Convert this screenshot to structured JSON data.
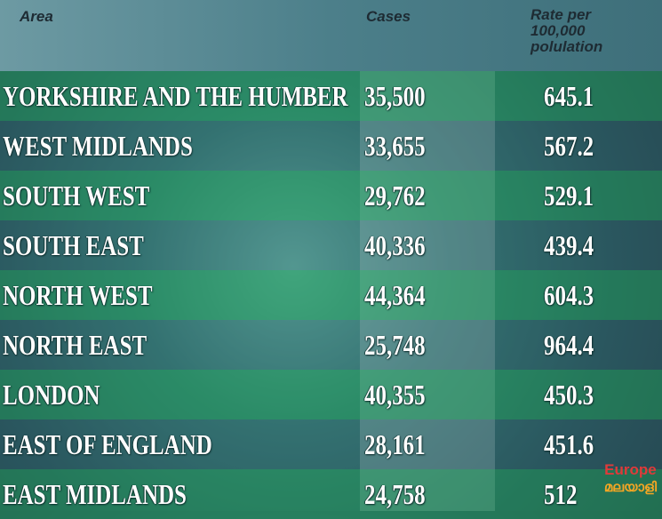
{
  "header": {
    "area": "Area",
    "cases": "Cases",
    "rate": "Rate per 100,000 polulation"
  },
  "table": {
    "rows": [
      [
        "YORKSHIRE AND THE HUMBER",
        "35,500",
        "645.1"
      ],
      [
        "WEST MIDLANDS",
        "33,655",
        "567.2"
      ],
      [
        "SOUTH WEST",
        "29,762",
        "529.1"
      ],
      [
        "SOUTH EAST",
        "40,336",
        "439.4"
      ],
      [
        "NORTH WEST",
        "44,364",
        "604.3"
      ],
      [
        "NORTH EAST",
        "25,748",
        "964.4"
      ],
      [
        "LONDON",
        "40,355",
        "450.3"
      ],
      [
        "EAST OF ENGLAND",
        "28,161",
        "451.6"
      ],
      [
        "EAST MIDLANDS",
        "24,758",
        "512"
      ]
    ]
  },
  "logo": {
    "line1": "Europe",
    "line2": "മലയാളി"
  }
}
